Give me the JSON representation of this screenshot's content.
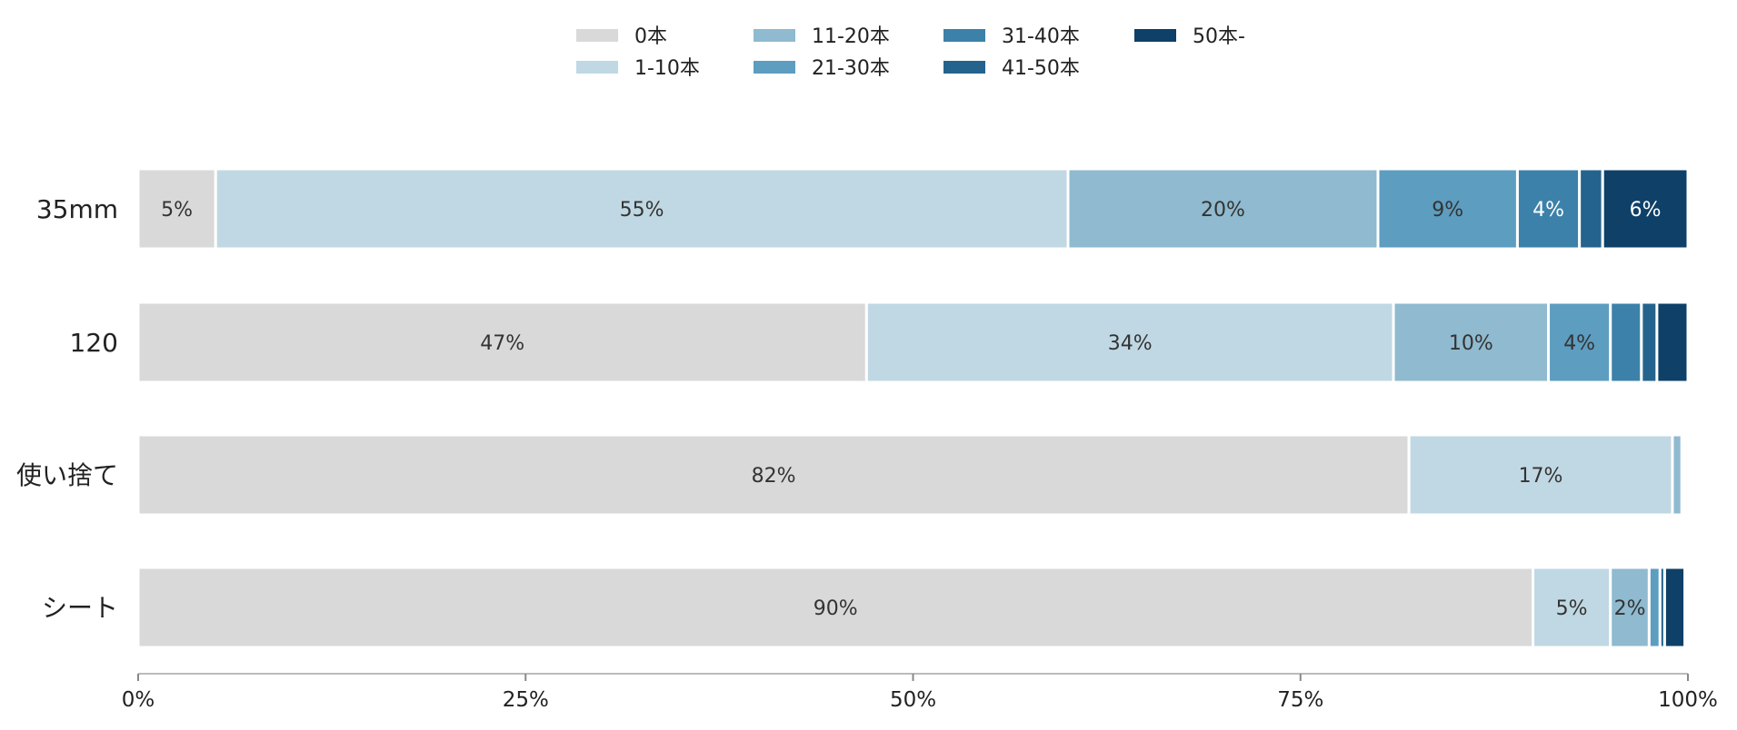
{
  "chart_data": {
    "type": "bar",
    "orientation": "horizontal",
    "stacked": true,
    "title": "",
    "xlabel": "",
    "ylabel": "",
    "xlim": [
      0,
      100
    ],
    "x_ticks": [
      "0%",
      "25%",
      "50%",
      "75%",
      "100%"
    ],
    "x_tick_values": [
      0,
      25,
      50,
      75,
      100
    ],
    "grid": false,
    "legend_position": "top-center",
    "categories": [
      "35mm",
      "120",
      "使い捨て",
      "シート"
    ],
    "series": [
      {
        "name": "0本",
        "color": "#d9d9d9",
        "values": [
          5,
          47,
          82,
          90
        ],
        "labels": [
          "5%",
          "47%",
          "82%",
          "90%"
        ]
      },
      {
        "name": "1-10本",
        "color": "#c0d8e3",
        "values": [
          55,
          34,
          17,
          5
        ],
        "labels": [
          "55%",
          "34%",
          "17%",
          "5%"
        ]
      },
      {
        "name": "11-20本",
        "color": "#8fbacf",
        "values": [
          20,
          10,
          0.6,
          2.5
        ],
        "labels": [
          "20%",
          "10%",
          "",
          "2%"
        ]
      },
      {
        "name": "21-30本",
        "color": "#5d9dc0",
        "values": [
          9,
          4,
          0,
          0.7
        ],
        "labels": [
          "9%",
          "4%",
          "",
          ""
        ]
      },
      {
        "name": "31-40本",
        "color": "#3c81a9",
        "values": [
          4,
          2,
          0,
          0
        ],
        "labels": [
          "4%",
          "",
          "",
          ""
        ]
      },
      {
        "name": "41-50本",
        "color": "#24638d",
        "values": [
          1.5,
          1,
          0,
          0.3
        ],
        "labels": [
          "",
          "",
          "",
          ""
        ]
      },
      {
        "name": "50本-",
        "color": "#0e4068",
        "values": [
          5.5,
          2,
          0,
          1.3
        ],
        "labels": [
          "6%",
          "",
          "",
          ""
        ]
      }
    ]
  }
}
